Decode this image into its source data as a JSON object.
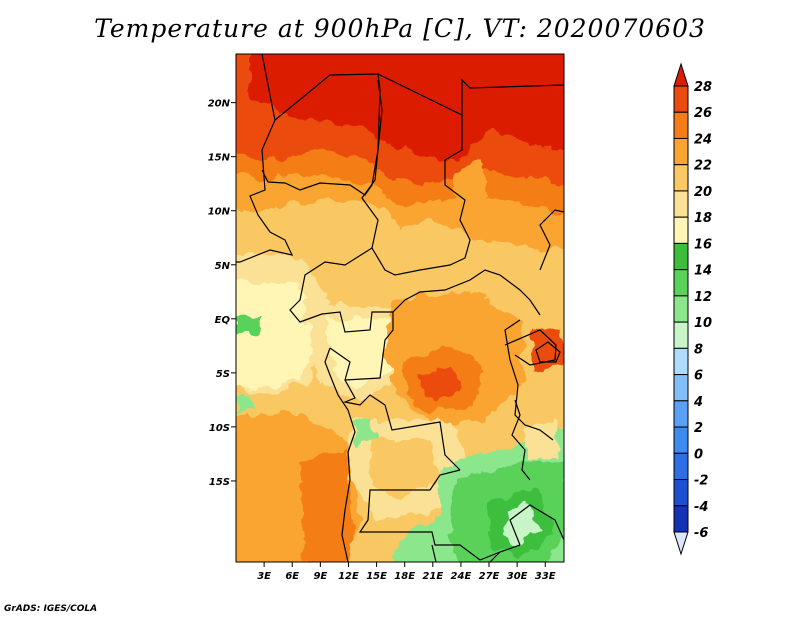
{
  "title": "Temperature at 900hPa [C], VT: 2020070603",
  "credit": "GrADS: IGES/COLA",
  "map": {
    "lon_range": [
      0,
      35
    ],
    "lat_range": [
      -22.5,
      24.5
    ],
    "lon_ticks": [
      {
        "lon": 3,
        "label": "3E"
      },
      {
        "lon": 6,
        "label": "6E"
      },
      {
        "lon": 9,
        "label": "9E"
      },
      {
        "lon": 12,
        "label": "12E"
      },
      {
        "lon": 15,
        "label": "15E"
      },
      {
        "lon": 18,
        "label": "18E"
      },
      {
        "lon": 21,
        "label": "21E"
      },
      {
        "lon": 24,
        "label": "24E"
      },
      {
        "lon": 27,
        "label": "27E"
      },
      {
        "lon": 30,
        "label": "30E"
      },
      {
        "lon": 33,
        "label": "33E"
      }
    ],
    "lat_ticks": [
      {
        "lat": 20,
        "label": "20N"
      },
      {
        "lat": 15,
        "label": "15N"
      },
      {
        "lat": 10,
        "label": "10N"
      },
      {
        "lat": 5,
        "label": "5N"
      },
      {
        "lat": 0,
        "label": "EQ"
      },
      {
        "lat": -5,
        "label": "5S"
      },
      {
        "lat": -10,
        "label": "10S"
      },
      {
        "lat": -15,
        "label": "15S"
      }
    ]
  },
  "colorbar": {
    "levels": [
      "-6",
      "-4",
      "-2",
      "0",
      "2",
      "4",
      "6",
      "8",
      "10",
      "12",
      "14",
      "16",
      "18",
      "20",
      "22",
      "24",
      "26",
      "28"
    ],
    "colors": [
      "#0a0a78",
      "#1432b4",
      "#1e50d2",
      "#2d6ee6",
      "#3c8cf0",
      "#5aa0f5",
      "#82bef8",
      "#afdcfa",
      "#c8f5c8",
      "#8ce68c",
      "#5ad25a",
      "#3cbe3c",
      "#fff5b4",
      "#fae196",
      "#fac864",
      "#faa532",
      "#f57d19",
      "#eb4b0f",
      "#dc1e00"
    ],
    "under_color": "#dce6ff",
    "over_color": "#dc1e00"
  }
}
